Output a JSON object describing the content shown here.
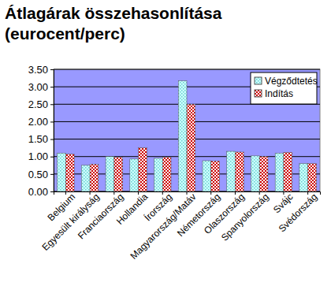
{
  "chart_data": {
    "type": "bar",
    "title": "Átlagárak összehasonlítása (eurocent/perc)",
    "categories": [
      "Belgium",
      "Egyesült királyság",
      "Franciaország",
      "Hollandia",
      "Írország",
      "Magyarország/Matáv",
      "Németország",
      "Olaszország",
      "Spanyolország",
      "Svájc",
      "Svédország"
    ],
    "series": [
      {
        "name": "Végződtetés",
        "color": "#66cccc",
        "values": [
          1.1,
          0.75,
          1.0,
          0.93,
          0.95,
          3.17,
          0.88,
          1.15,
          1.02,
          1.1,
          0.8
        ]
      },
      {
        "name": "Indítás",
        "color": "#cc0000",
        "values": [
          1.07,
          0.78,
          0.98,
          1.25,
          0.98,
          2.5,
          0.87,
          1.13,
          1.0,
          1.12,
          0.8
        ]
      }
    ],
    "ylim": [
      0,
      3.5
    ],
    "yticks": [
      {
        "value": 0,
        "label": "0.00"
      },
      {
        "value": 0.5,
        "label": "0.50"
      },
      {
        "value": 1,
        "label": "1.00"
      },
      {
        "value": 1.5,
        "label": "1.50"
      },
      {
        "value": 2,
        "label": "2.00"
      },
      {
        "value": 2.5,
        "label": "2.50"
      },
      {
        "value": 3,
        "label": "3.00"
      },
      {
        "value": 3.5,
        "label": "3.50"
      }
    ],
    "grid": true,
    "legend": "top-right"
  }
}
